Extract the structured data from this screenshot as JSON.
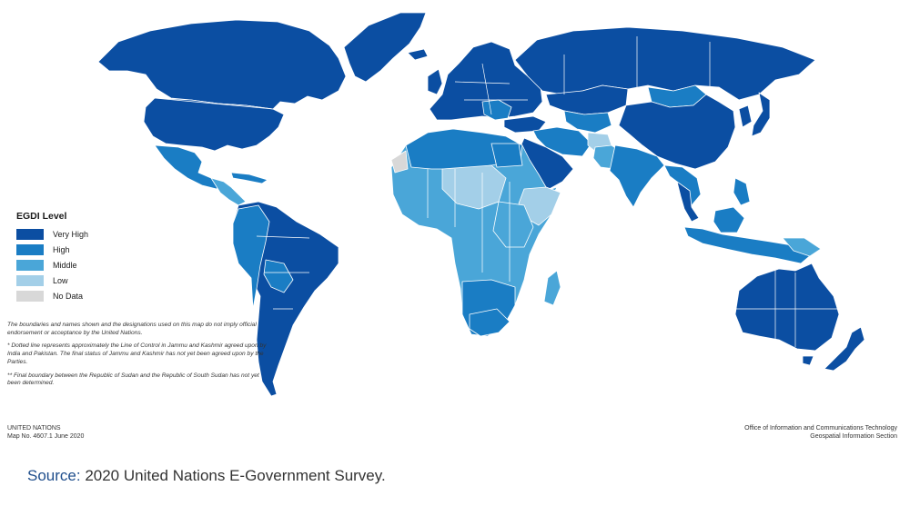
{
  "legend": {
    "title": "EGDI Level",
    "items": [
      {
        "label": "Very High",
        "color": "#0b4ea2"
      },
      {
        "label": "High",
        "color": "#1a7dc4"
      },
      {
        "label": "Middle",
        "color": "#4aa6d8"
      },
      {
        "label": "Low",
        "color": "#a3cfe8"
      },
      {
        "label": "No Data",
        "color": "#d8d8d8"
      }
    ]
  },
  "notes": [
    "The boundaries and names shown and the designations used on this map do not imply official endorsement or acceptance by the United Nations.",
    "* Dotted line represents approximately the Line of Control in Jammu and Kashmir agreed upon by India and Pakistan. The final status of Jammu and Kashmir has not yet been agreed upon by the Parties.",
    "** Final boundary between the Republic of Sudan and the Republic of South Sudan has not yet been determined."
  ],
  "footer": {
    "org": "UNITED NATIONS",
    "map_no": "Map No. 4607.1  June 2020",
    "office": "Office of Information and Communications Technology",
    "section": "Geospatial Information Section"
  },
  "source": {
    "label": "Source:",
    "text": " 2020 United Nations E-Government Survey."
  }
}
